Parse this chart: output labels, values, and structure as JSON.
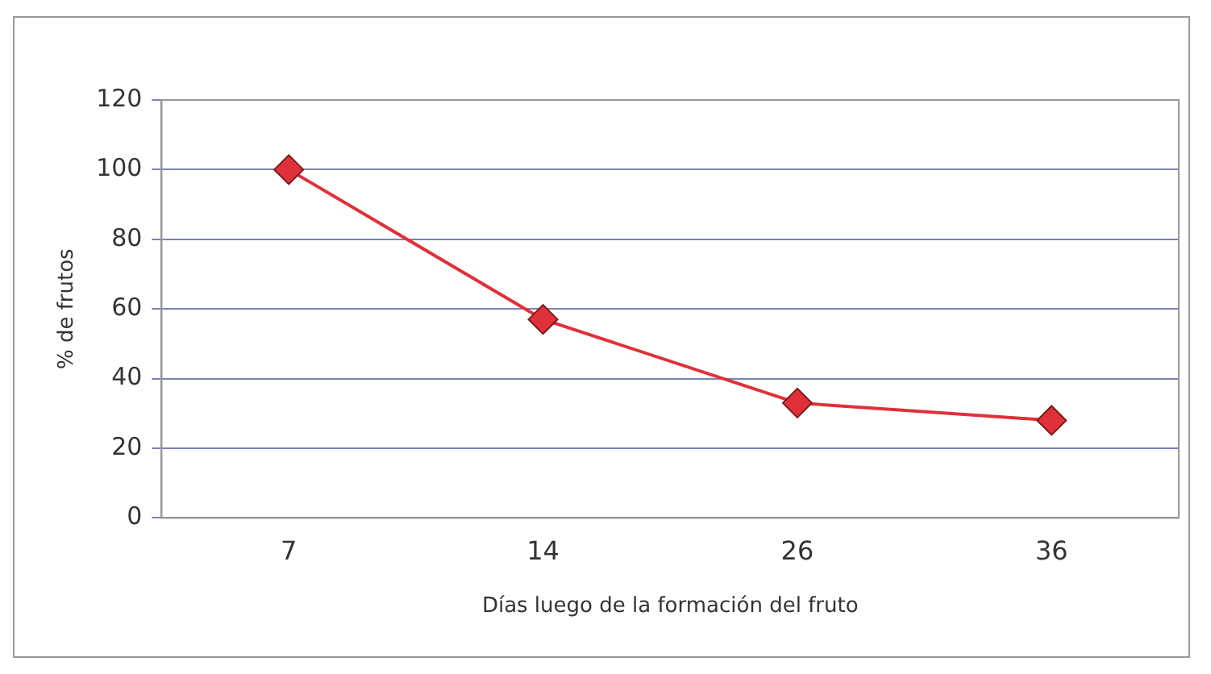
{
  "chart_data": {
    "type": "line",
    "xlabel": "Días luego de la formación del fruto",
    "ylabel": "% de frutos",
    "categories": [
      "7",
      "14",
      "26",
      "36"
    ],
    "series": [
      {
        "color": "#e0303a",
        "values": [
          100,
          57,
          33,
          28
        ]
      }
    ],
    "ylim": [
      0,
      120
    ],
    "yticks": [
      0,
      20,
      40,
      60,
      80,
      100,
      120
    ],
    "grid": "y",
    "legend": false,
    "marker": "diamond",
    "line_style": "solid"
  }
}
